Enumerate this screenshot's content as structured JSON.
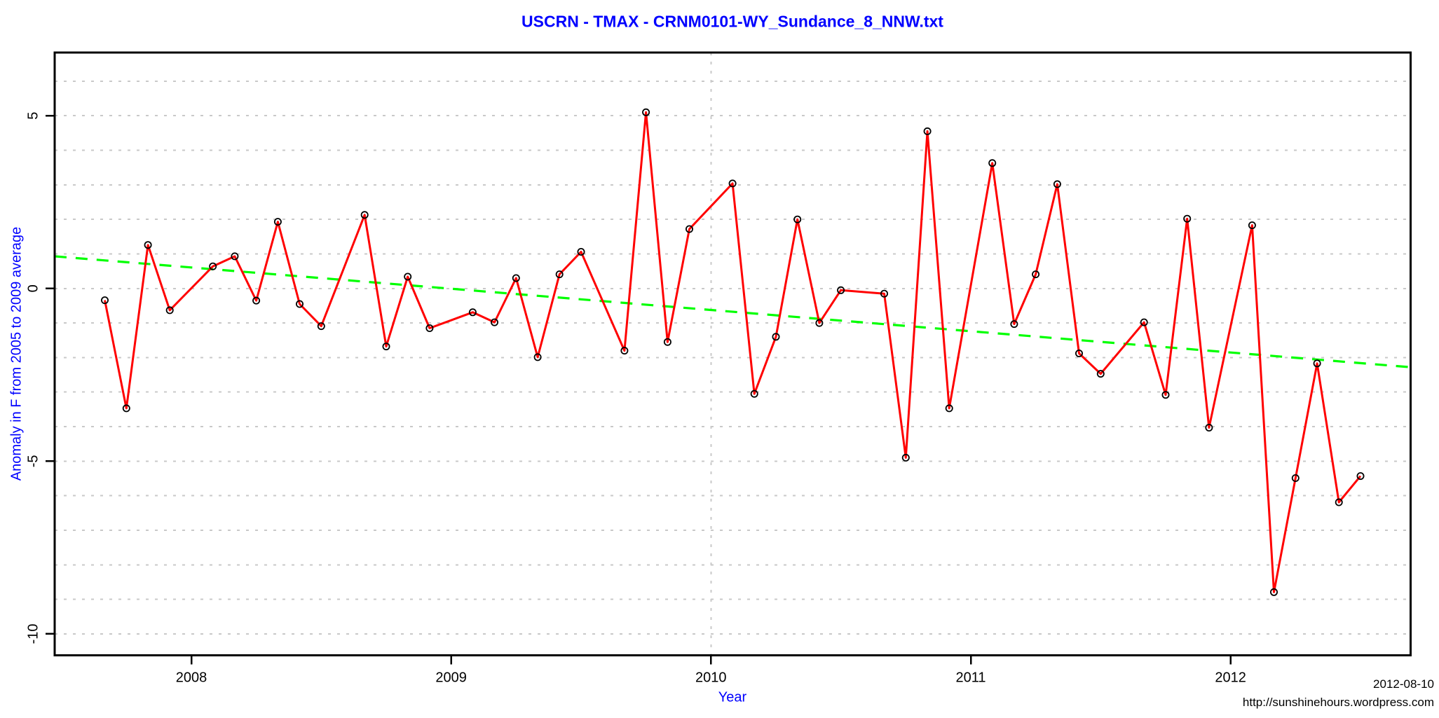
{
  "header": {
    "title": "USCRN - TMAX - CRNM0101-WY_Sundance_8_NNW.txt",
    "title_color": "#0000FF"
  },
  "footer": {
    "date_stamp": "2012-08-10",
    "source_url": "http://sunshinehours.wordpress.com"
  },
  "chart_data": {
    "type": "line",
    "title": "USCRN - TMAX - CRNM0101-WY_Sundance_8_NNW.txt",
    "xlabel": "Year",
    "ylabel": "Anomaly in F from 2005 to 2009 average",
    "xlim": [
      2007.474,
      2012.693
    ],
    "ylim": [
      -10.62,
      6.83
    ],
    "grid": "on",
    "legend_position": "none",
    "axis_color": "#000000",
    "grid_color": "#C9C9C9",
    "label_color": "#0000FF",
    "tick_label_color": "#000000",
    "x_ticks": [
      {
        "value": 2008,
        "label": "2008"
      },
      {
        "value": 2009,
        "label": "2009"
      },
      {
        "value": 2010,
        "label": "2010"
      },
      {
        "value": 2011,
        "label": "2011"
      },
      {
        "value": 2012,
        "label": "2012"
      }
    ],
    "y_ticks": [
      {
        "value": 5,
        "label": "5"
      },
      {
        "value": 0,
        "label": "0"
      },
      {
        "value": -5,
        "label": "-5"
      },
      {
        "value": -10,
        "label": "-10"
      }
    ],
    "h_gridlines": [
      6,
      5,
      4,
      3,
      2,
      1,
      0,
      -1,
      -2,
      -3,
      -4,
      -5,
      -6,
      -7,
      -8,
      -9,
      -10
    ],
    "v_gridlines": [
      2010
    ],
    "series": [
      {
        "name": "monthly-tmax-anomaly",
        "color": "#FF0000",
        "marker": "open-circle",
        "marker_color": "#000000",
        "points": [
          {
            "date": "2007-09",
            "x": 2007.667,
            "y": -0.34
          },
          {
            "date": "2007-10",
            "x": 2007.75,
            "y": -3.47
          },
          {
            "date": "2007-11",
            "x": 2007.833,
            "y": 1.26
          },
          {
            "date": "2007-12",
            "x": 2007.917,
            "y": -0.63
          },
          {
            "date": "2008-02",
            "x": 2008.083,
            "y": 0.64
          },
          {
            "date": "2008-03",
            "x": 2008.167,
            "y": 0.93
          },
          {
            "date": "2008-04",
            "x": 2008.25,
            "y": -0.35
          },
          {
            "date": "2008-05",
            "x": 2008.333,
            "y": 1.93
          },
          {
            "date": "2008-06",
            "x": 2008.417,
            "y": -0.45
          },
          {
            "date": "2008-07",
            "x": 2008.5,
            "y": -1.09
          },
          {
            "date": "2008-09",
            "x": 2008.667,
            "y": 2.13
          },
          {
            "date": "2008-10",
            "x": 2008.75,
            "y": -1.68
          },
          {
            "date": "2008-11",
            "x": 2008.833,
            "y": 0.34
          },
          {
            "date": "2008-12",
            "x": 2008.917,
            "y": -1.15
          },
          {
            "date": "2009-02",
            "x": 2009.083,
            "y": -0.69
          },
          {
            "date": "2009-03",
            "x": 2009.167,
            "y": -0.98
          },
          {
            "date": "2009-04",
            "x": 2009.25,
            "y": 0.3
          },
          {
            "date": "2009-05",
            "x": 2009.333,
            "y": -1.99
          },
          {
            "date": "2009-06",
            "x": 2009.417,
            "y": 0.41
          },
          {
            "date": "2009-07",
            "x": 2009.5,
            "y": 1.06
          },
          {
            "date": "2009-09",
            "x": 2009.667,
            "y": -1.8
          },
          {
            "date": "2009-10",
            "x": 2009.75,
            "y": 5.1
          },
          {
            "date": "2009-11",
            "x": 2009.833,
            "y": -1.55
          },
          {
            "date": "2009-12",
            "x": 2009.917,
            "y": 1.72
          },
          {
            "date": "2010-02",
            "x": 2010.083,
            "y": 3.04
          },
          {
            "date": "2010-03",
            "x": 2010.167,
            "y": -3.05
          },
          {
            "date": "2010-04",
            "x": 2010.25,
            "y": -1.4
          },
          {
            "date": "2010-05",
            "x": 2010.333,
            "y": 2.0
          },
          {
            "date": "2010-06",
            "x": 2010.417,
            "y": -1.0
          },
          {
            "date": "2010-07",
            "x": 2010.5,
            "y": -0.05
          },
          {
            "date": "2010-09",
            "x": 2010.667,
            "y": -0.15
          },
          {
            "date": "2010-10",
            "x": 2010.75,
            "y": -4.9
          },
          {
            "date": "2010-11",
            "x": 2010.833,
            "y": 4.55
          },
          {
            "date": "2010-12",
            "x": 2010.917,
            "y": -3.47
          },
          {
            "date": "2011-02",
            "x": 2011.083,
            "y": 3.63
          },
          {
            "date": "2011-03",
            "x": 2011.167,
            "y": -1.03
          },
          {
            "date": "2011-04",
            "x": 2011.25,
            "y": 0.41
          },
          {
            "date": "2011-05",
            "x": 2011.333,
            "y": 3.02
          },
          {
            "date": "2011-06",
            "x": 2011.417,
            "y": -1.88
          },
          {
            "date": "2011-07",
            "x": 2011.5,
            "y": -2.47
          },
          {
            "date": "2011-09",
            "x": 2011.667,
            "y": -0.98
          },
          {
            "date": "2011-10",
            "x": 2011.75,
            "y": -3.08
          },
          {
            "date": "2011-11",
            "x": 2011.833,
            "y": 2.02
          },
          {
            "date": "2011-12",
            "x": 2011.917,
            "y": -4.03
          },
          {
            "date": "2012-02",
            "x": 2012.083,
            "y": 1.83
          },
          {
            "date": "2012-03",
            "x": 2012.167,
            "y": -8.79
          },
          {
            "date": "2012-04",
            "x": 2012.25,
            "y": -5.49
          },
          {
            "date": "2012-05",
            "x": 2012.333,
            "y": -2.17
          },
          {
            "date": "2012-06",
            "x": 2012.417,
            "y": -6.19
          },
          {
            "date": "2012-07",
            "x": 2012.5,
            "y": -5.43
          }
        ]
      }
    ],
    "trend": {
      "name": "linear-trend",
      "color": "#00FF00",
      "style": "dashed",
      "start": {
        "x": 2007.474,
        "y": 0.93
      },
      "end": {
        "x": 2012.693,
        "y": -2.28
      }
    }
  }
}
